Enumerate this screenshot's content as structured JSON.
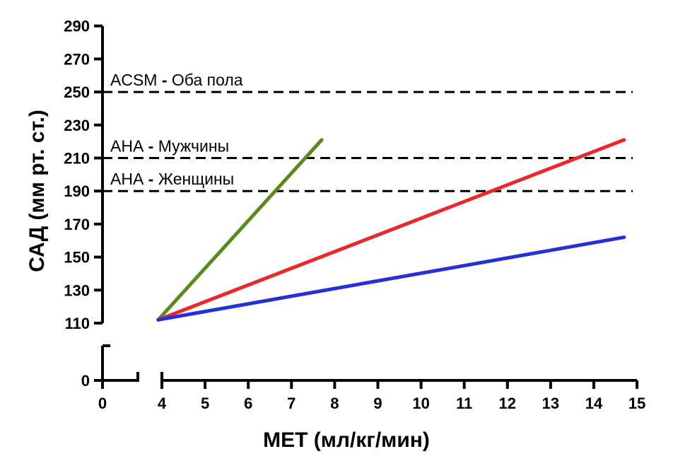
{
  "chart_data": {
    "type": "line",
    "title": "",
    "xlabel": "МЕТ (мл/кг/мин)",
    "ylabel": "САД (мм рт. ст.)",
    "x_ticks": [
      0,
      4,
      5,
      6,
      7,
      8,
      9,
      10,
      11,
      12,
      13,
      14,
      15
    ],
    "x_tick_labels": [
      "0",
      "4",
      "5",
      "6",
      "7",
      "8",
      "9",
      "10",
      "11",
      "12",
      "13",
      "14",
      "15"
    ],
    "y_ticks": [
      0,
      110,
      130,
      150,
      170,
      190,
      210,
      230,
      250,
      270,
      290
    ],
    "y_tick_labels": [
      "0",
      "110",
      "130",
      "150",
      "170",
      "190",
      "210",
      "230",
      "250",
      "270",
      "290"
    ],
    "x_axis_break": [
      0,
      4
    ],
    "y_axis_break": [
      0,
      110
    ],
    "xlim": [
      0,
      15
    ],
    "ylim": [
      0,
      290
    ],
    "grid": false,
    "legend": "none",
    "series": [
      {
        "color": "#5a8a1e",
        "points": [
          [
            3.75,
            112
          ],
          [
            7.7,
            221
          ]
        ]
      },
      {
        "color": "#e8282a",
        "points": [
          [
            3.75,
            112
          ],
          [
            14.7,
            221
          ]
        ]
      },
      {
        "color": "#2530d8",
        "points": [
          [
            3.75,
            112
          ],
          [
            14.7,
            162
          ]
        ]
      }
    ],
    "reference_lines": [
      {
        "y": 250,
        "label_main": "ACSM",
        "label_sep": " - ",
        "label_rest": "Оба пола"
      },
      {
        "y": 210,
        "label_main": "АНА",
        "label_sep": " - ",
        "label_rest": "Мужчины"
      },
      {
        "y": 190,
        "label_main": "АНА",
        "label_sep": " - ",
        "label_rest": "Женщины"
      }
    ]
  }
}
